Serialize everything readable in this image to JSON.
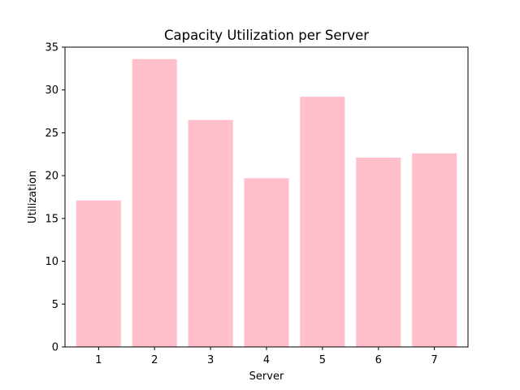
{
  "chart_data": {
    "type": "bar",
    "title": "Capacity Utilization per Server",
    "xlabel": "Server",
    "ylabel": "Utilization",
    "categories": [
      "1",
      "2",
      "3",
      "4",
      "5",
      "6",
      "7"
    ],
    "values": [
      17.1,
      33.6,
      26.5,
      19.7,
      29.2,
      22.1,
      22.6
    ],
    "ylim": [
      0,
      35
    ],
    "yticks": [
      0,
      5,
      10,
      15,
      20,
      25,
      30,
      35
    ],
    "bar_color": "#ffc0cb",
    "grid": false,
    "legend": "none"
  }
}
